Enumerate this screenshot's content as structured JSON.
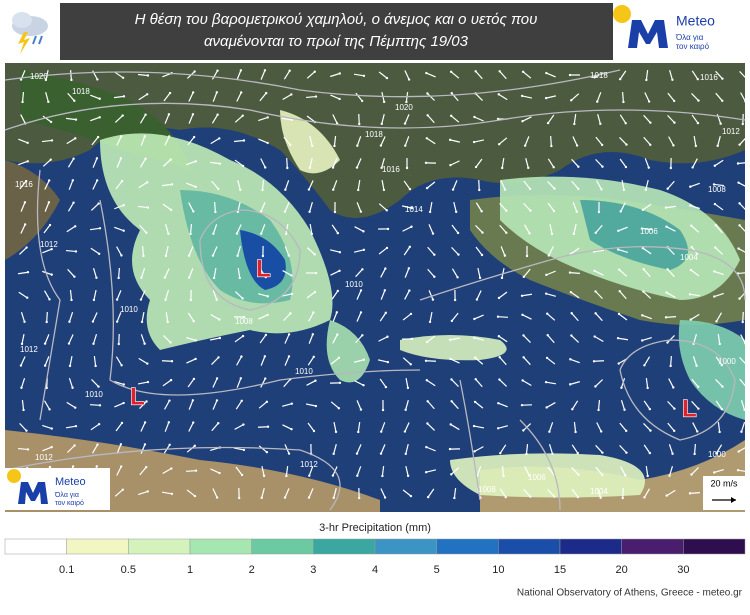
{
  "header": {
    "title_lines": [
      "Η θέση του βαρομετρικού χαμηλού, ο άνεμος και ο υετός που",
      "αναμένονται το πρωί της Πέμπτης 19/03"
    ]
  },
  "logo": {
    "name": "Meteo",
    "tagline_lines": [
      "Όλα για",
      "τον καιρό"
    ]
  },
  "map": {
    "isobar_labels": [
      "1020",
      "1018",
      "1020",
      "1018",
      "1018",
      "1016",
      "1012",
      "1016",
      "1016",
      "1008",
      "1012",
      "1014",
      "1006",
      "1004",
      "1012",
      "1010",
      "1008",
      "1010",
      "1010",
      "1010",
      "1000",
      "1000",
      "1012",
      "1012",
      "1008",
      "1006",
      "1004"
    ],
    "lows": [
      "L",
      "L",
      "L"
    ],
    "wind_key": "20 m/s"
  },
  "legend": {
    "title": "3-hr Precipitation (mm)",
    "ticks": [
      "0.1",
      "0.5",
      "1",
      "2",
      "3",
      "4",
      "5",
      "10",
      "15",
      "20",
      "30"
    ],
    "colors": [
      "#ffffff",
      "#f2f6c2",
      "#d4f2bc",
      "#a6e6b0",
      "#6ccaa2",
      "#3aa8a0",
      "#3a94c4",
      "#2272c2",
      "#1a4ea8",
      "#1c2a8a",
      "#4a1e6e",
      "#2e0e4e"
    ]
  },
  "footer": {
    "credit": "National Observatory of Athens, Greece - meteo.gr"
  }
}
